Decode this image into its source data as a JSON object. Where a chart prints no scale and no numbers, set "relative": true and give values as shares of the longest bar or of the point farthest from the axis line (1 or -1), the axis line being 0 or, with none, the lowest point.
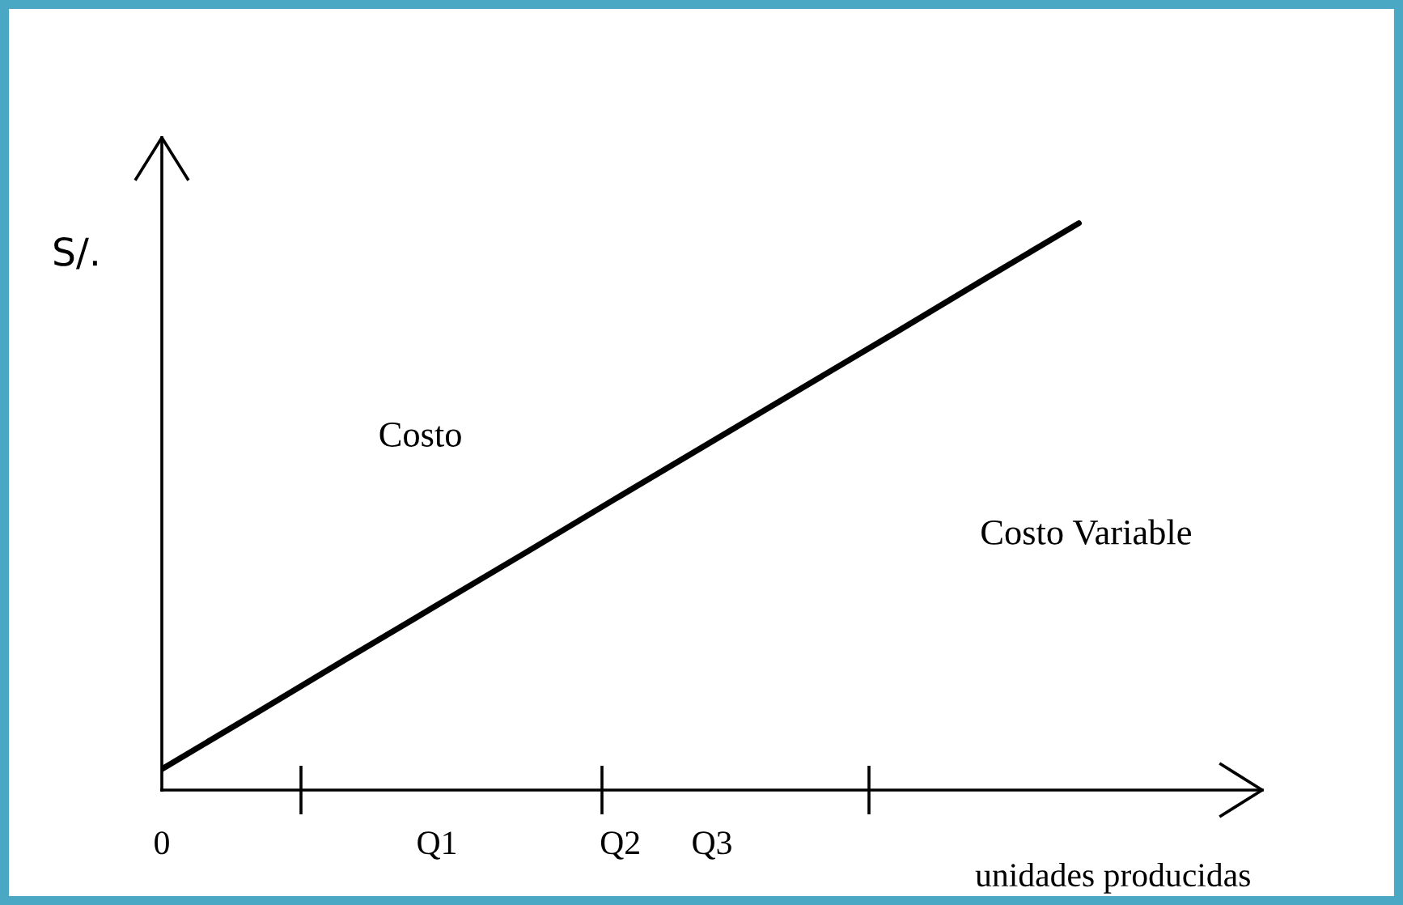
{
  "chart_data": {
    "type": "line",
    "relative": true,
    "ylabel": "S/.",
    "xlabel": "unidades producidas",
    "categories": [
      "0",
      null,
      null,
      "Q1",
      null,
      "Q2",
      "Q3",
      null,
      null,
      null,
      null,
      null,
      null
    ],
    "series": [
      {
        "color": "#000000",
        "values": [
          0.037,
          0.133,
          0.23,
          0.326,
          0.422,
          0.519,
          0.615,
          0.711,
          0.807,
          0.904,
          1,
          null,
          null
        ]
      }
    ],
    "annotations": [
      "Costo",
      "Costo Variable"
    ],
    "grid": false,
    "marker": "none",
    "line_style": "solid"
  }
}
